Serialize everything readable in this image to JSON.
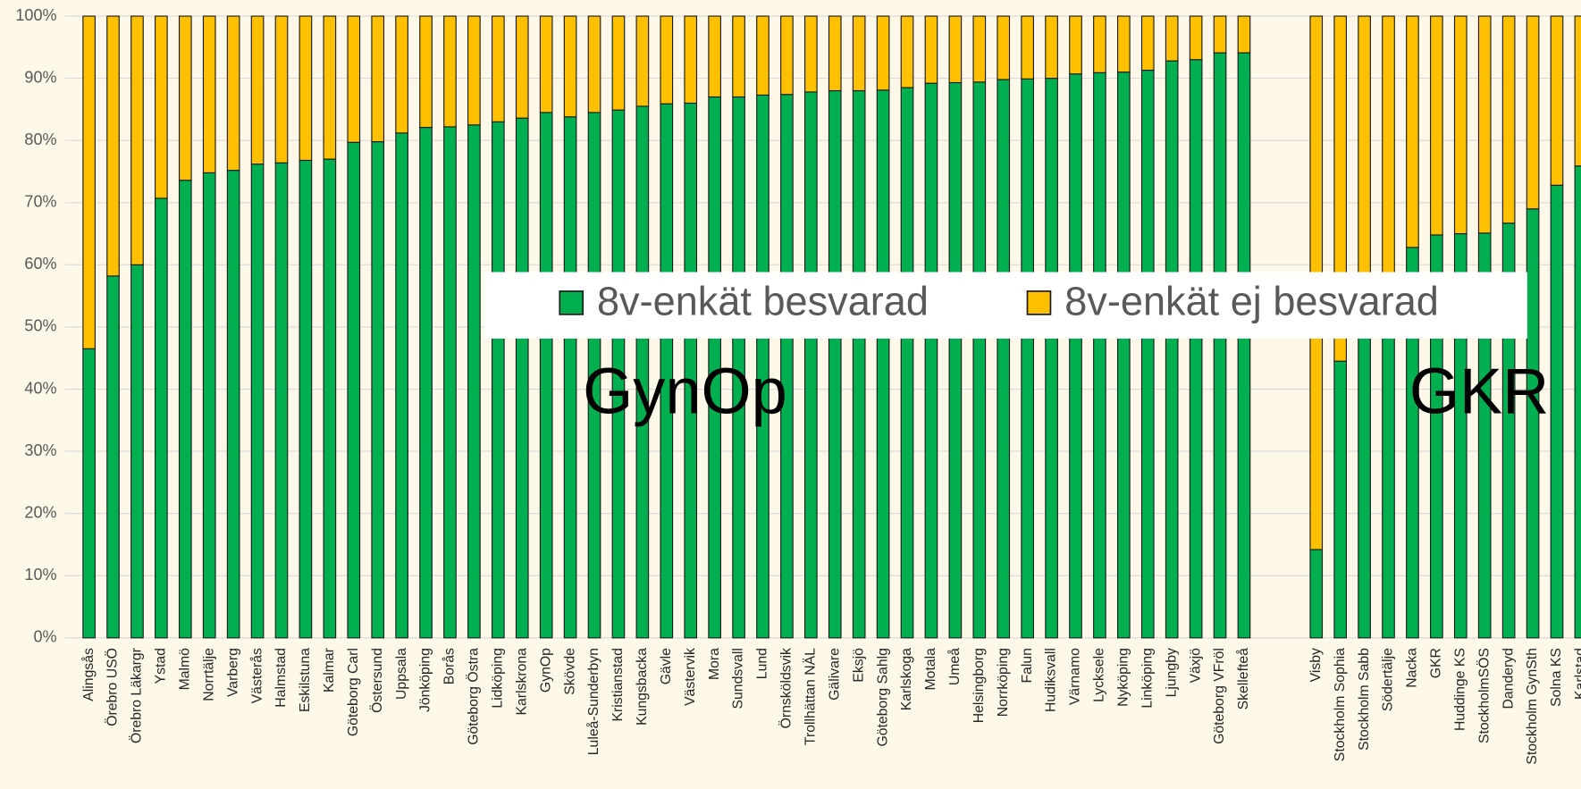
{
  "chart_data": {
    "type": "stacked_bar",
    "categories": [
      "Alingsås",
      "Örebro USÖ",
      "Örebro Läkargr",
      "Ystad",
      "Malmö",
      "Norrtälje",
      "Varberg",
      "Västerås",
      "Halmstad",
      "Eskilstuna",
      "Kalmar",
      "Göteborg Carl",
      "Östersund",
      "Uppsala",
      "Jönköping",
      "Borås",
      "Göteborg Östra",
      "Lidköping",
      "Karlskrona",
      "GynOp",
      "Skövde",
      "Luleå-Sunderbyn",
      "Kristianstad",
      "Kungsbacka",
      "Gävle",
      "Västervik",
      "Mora",
      "Sundsvall",
      "Lund",
      "Örnsköldsvik",
      "Trollhättan NÄL",
      "Gälivare",
      "Eksjö",
      "Göteborg Sahlg",
      "Karlskoga",
      "Motala",
      "Umeå",
      "Helsingborg",
      "Norrköping",
      "Falun",
      "Hudiksvall",
      "Värnamo",
      "Lycksele",
      "Nyköping",
      "Linköping",
      "Ljungby",
      "Växjö",
      "Göteborg VFröl",
      "Skellefteå",
      null,
      null,
      "Visby",
      "Stockholm Sophia",
      "Stockholm Sabb",
      "Södertälje",
      "Nacka",
      "GKR",
      "Huddinge KS",
      "StockholmSÖS",
      "Danderyd",
      "Stockholm GynSth",
      "Solna KS",
      "Karlstad"
    ],
    "series": [
      {
        "name": "8v-enkät besvarad",
        "color": "#00b050",
        "values": [
          46.5,
          58.2,
          60,
          70.7,
          73.6,
          74.8,
          75.2,
          76.2,
          76.4,
          76.8,
          77,
          79.7,
          79.8,
          81.2,
          82.1,
          82.2,
          82.5,
          83,
          83.6,
          84.5,
          83.8,
          84.5,
          84.9,
          85.5,
          85.9,
          86,
          87,
          87,
          87.3,
          87.4,
          87.8,
          88,
          88,
          88.1,
          88.5,
          89.2,
          89.3,
          89.4,
          89.8,
          89.9,
          90,
          90.7,
          90.9,
          91,
          91.3,
          92.8,
          93,
          94.1,
          94.1,
          null,
          null,
          14.2,
          44.5,
          55,
          57,
          62.8,
          64.8,
          65,
          65.1,
          66.7,
          69,
          72.8,
          75.9
        ]
      },
      {
        "name": "8v-enkät ej besvarad",
        "color": "#ffc000",
        "values": [
          53.5,
          41.8,
          40,
          29.3,
          26.4,
          25.2,
          24.8,
          23.8,
          23.6,
          23.2,
          23,
          20.3,
          20.2,
          18.8,
          17.9,
          17.8,
          17.5,
          17,
          16.4,
          15.5,
          16.2,
          15.5,
          15.1,
          14.5,
          14.1,
          14,
          13,
          13,
          12.7,
          12.6,
          12.2,
          12,
          12,
          11.9,
          11.5,
          10.8,
          10.7,
          10.6,
          10.2,
          10.1,
          10,
          9.3,
          9.1,
          9,
          8.7,
          7.2,
          7,
          5.9,
          5.9,
          null,
          null,
          85.8,
          55.5,
          45,
          43,
          37.2,
          35.2,
          35,
          34.9,
          33.3,
          31,
          27.2,
          24.1
        ]
      }
    ],
    "ylim": [
      0,
      100
    ],
    "yticks": [
      {
        "value": 0,
        "label": "0%"
      },
      {
        "value": 10,
        "label": "10%"
      },
      {
        "value": 20,
        "label": "20%"
      },
      {
        "value": 30,
        "label": "30%"
      },
      {
        "value": 40,
        "label": "40%"
      },
      {
        "value": 50,
        "label": "50%"
      },
      {
        "value": 60,
        "label": "60%"
      },
      {
        "value": 70,
        "label": "70%"
      },
      {
        "value": 80,
        "label": "80%"
      },
      {
        "value": 90,
        "label": "90%"
      },
      {
        "value": 100,
        "label": "100%"
      }
    ],
    "grid": true,
    "annotations": [
      "GynOp",
      "GKR"
    ]
  }
}
